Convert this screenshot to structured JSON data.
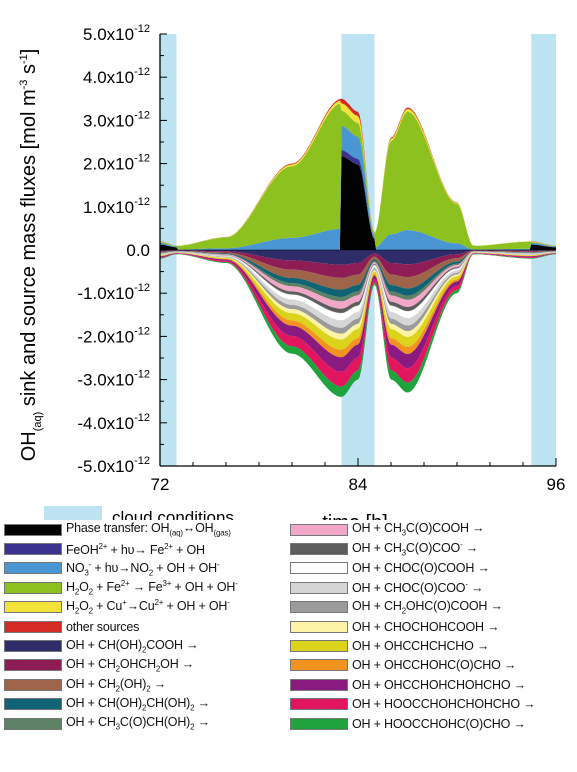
{
  "chart_data": {
    "type": "area",
    "ylabel": "OH(aq) sink and source mass fluxes [mol m-3 s-1]",
    "xlabel": "time [h]",
    "xlim": [
      72,
      96
    ],
    "ylim": [
      -5e-12,
      5e-12
    ],
    "x_ticks": [
      "72",
      "84",
      "96"
    ],
    "y_ticks": [
      "5.0x10-12",
      "4.0x10-12",
      "3.0x10-12",
      "2.0x10-12",
      "1.0x10-12",
      "0.0",
      "-1.0x10-12",
      "-2.0x10-12",
      "-3.0x10-12",
      "-4.0x10-12",
      "-5.0x10-12"
    ],
    "cloud_periods": [
      [
        72.0,
        73.0
      ],
      [
        83.0,
        85.0
      ],
      [
        94.5,
        96.0
      ]
    ],
    "cloud_label": "cloud conditions",
    "cloud_color": "#bde3f1",
    "envelope_positive": {
      "x": [
        72.0,
        73.0,
        76.0,
        80.0,
        83.0,
        84.0,
        85.0,
        86.0,
        87.0,
        90.0,
        91.0,
        94.5,
        96.0
      ],
      "y": [
        2e-13,
        1e-13,
        3e-13,
        2e-12,
        3.5e-12,
        3.2e-12,
        4e-13,
        2.6e-12,
        3.3e-12,
        1.1e-12,
        1e-13,
        2e-13,
        1e-13
      ]
    },
    "envelope_negative": {
      "x": [
        72.0,
        73.0,
        76.0,
        80.0,
        83.0,
        84.0,
        85.0,
        86.0,
        87.0,
        90.0,
        91.0,
        94.5,
        96.0
      ],
      "y": [
        -2e-13,
        -1e-13,
        -3e-13,
        -2.4e-12,
        -3.4e-12,
        -3e-12,
        -8e-13,
        -3e-12,
        -3.3e-12,
        -1e-12,
        -1e-13,
        -2e-13,
        -1e-13
      ]
    },
    "series": [
      {
        "name": "Phase transfer: OH(aq)↔OH(gas)",
        "html": "Phase transfer: OH<sub>(aq)</sub>↔OH<sub>(gas)</sub>",
        "color": "#000000"
      },
      {
        "name": "FeOH2+ + hυ→ Fe2+ + OH",
        "html": "FeOH<sup>2+</sup> + hυ→ Fe<sup>2+</sup> + OH",
        "color": "#3c3391"
      },
      {
        "name": "NO3- + hυ→NO2 + OH + OH-",
        "html": "NO<sub>3</sub><sup>-</sup> + hυ→NO<sub>2</sub> + OH + OH<sup>-</sup>",
        "color": "#4a96d2"
      },
      {
        "name": "H2O2 + Fe2+ → Fe3+ + OH + OH-",
        "html": "H<sub>2</sub>O<sub>2</sub> + Fe<sup>2+</sup> → Fe<sup>3+</sup> + OH + OH<sup>-</sup>",
        "color": "#8cc11f"
      },
      {
        "name": "H2O2 + Cu+→Cu2+ + OH + OH-",
        "html": "H<sub>2</sub>O<sub>2</sub> + Cu<sup>+</sup>→Cu<sup>2+</sup> + OH + OH<sup>-</sup>",
        "color": "#f3e338"
      },
      {
        "name": "other sources",
        "html": "other sources",
        "color": "#d42b24"
      },
      {
        "name": "OH + CH(OH)2COOH →",
        "html": "OH + CH(OH)<sub>2</sub>COOH →",
        "color": "#2e2d6a"
      },
      {
        "name": "OH + CH2OHCH2OH →",
        "html": "OH + CH<sub>2</sub>OHCH<sub>2</sub>OH →",
        "color": "#8e1d55"
      },
      {
        "name": "OH + CH2(OH)2 →",
        "html": "OH + CH<sub>2</sub>(OH)<sub>2</sub> →",
        "color": "#9e6449"
      },
      {
        "name": "OH + CH(OH)2CH(OH)2 →",
        "html": "OH + CH(OH)<sub>2</sub>CH(OH)<sub>2</sub> →",
        "color": "#0e6374"
      },
      {
        "name": "OH + CH3C(O)CH(OH)2 →",
        "html": "OH + CH<sub>3</sub>C(O)CH(OH)<sub>2</sub> →",
        "color": "#5e8064"
      },
      {
        "name": "OH + CH3C(O)COOH →",
        "html": "OH + CH<sub>3</sub>C(O)COOH →",
        "color": "#f2a6c8"
      },
      {
        "name": "OH + CH3C(O)COO- →",
        "html": "OH + CH<sub>3</sub>C(O)COO<sup>-</sup> →",
        "color": "#5d5d5d"
      },
      {
        "name": "OH + CHOC(O)COOH →",
        "html": "OH + CHOC(O)COOH →",
        "color": "#ffffff"
      },
      {
        "name": "OH + CHOC(O)COO- →",
        "html": "OH + CHOC(O)COO<sup>-</sup> →",
        "color": "#d6d6d6"
      },
      {
        "name": "OH + CH2OHC(O)COOH →",
        "html": "OH + CH<sub>2</sub>OHC(O)COOH →",
        "color": "#9b9b9b"
      },
      {
        "name": "OH + CHOCHOHCOOH →",
        "html": "OH + CHOCHOHCOOH →",
        "color": "#fcf3a5"
      },
      {
        "name": "OH + OHCCHCHCHO →",
        "html": "OH + OHCCHCHCHO →",
        "color": "#dcd41c"
      },
      {
        "name": "OH + OHCCHOHC(O)CHO →",
        "html": "OH + OHCCHOHC(O)CHO →",
        "color": "#f2931f"
      },
      {
        "name": "OH + OHCCHOHCHOHCHO →",
        "html": "OH + OHCCHOHCHOHCHO →",
        "color": "#8a1a7f"
      },
      {
        "name": "OH + HOOCCHOHCHOHCHO →",
        "html": "OH + HOOCCHOHCHOHCHO →",
        "color": "#e3155e"
      },
      {
        "name": "OH + HOOCCHOHC(O)CHO →",
        "html": "OH + HOOCCHOHC(O)CHO →",
        "color": "#1fa33c"
      }
    ]
  }
}
